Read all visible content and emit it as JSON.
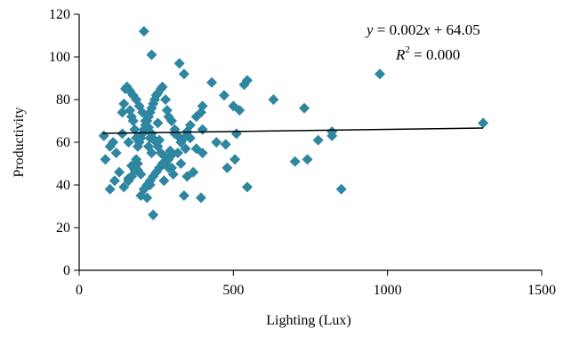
{
  "chart_data": {
    "type": "scatter",
    "title": "",
    "xlabel": "Lighting (Lux)",
    "ylabel": "Productivity",
    "xlim": [
      0,
      1500
    ],
    "ylim": [
      0,
      120
    ],
    "xticks": [
      0,
      500,
      1000,
      1500
    ],
    "yticks": [
      0,
      20,
      40,
      60,
      80,
      100,
      120
    ],
    "grid": false,
    "legend": "none",
    "marker": "diamond",
    "marker_color": "#2E86A0",
    "trendline": {
      "slope": 0.002,
      "intercept": 64.05,
      "x_range": [
        75,
        1310
      ],
      "color": "#000000"
    },
    "annotations": {
      "equation_y": "y",
      "equation_rest": " = 0.002",
      "equation_x": "x",
      "equation_tail": " + 64.05",
      "r2_symbol": "R",
      "r2_exp": "2",
      "r2_value": " = 0.000"
    },
    "series": [
      {
        "x": [
          210,
          235,
          325,
          340,
          545,
          535,
          430,
          470,
          520,
          630,
          730,
          975,
          1310,
          820,
          820,
          775,
          740,
          700,
          850,
          545,
          480,
          505,
          510,
          475,
          500,
          445,
          400,
          395,
          380,
          360,
          350,
          340,
          330,
          320,
          310,
          300,
          290,
          285,
          280,
          270,
          265,
          255,
          250,
          245,
          240,
          235,
          230,
          225,
          220,
          215,
          210,
          205,
          200,
          195,
          190,
          185,
          180,
          175,
          170,
          165,
          160,
          150,
          145,
          140,
          120,
          110,
          100,
          85,
          80,
          400,
          345,
          330,
          310,
          295,
          280,
          265,
          255,
          245,
          235,
          225,
          215,
          205,
          195,
          185,
          175,
          165,
          155,
          140,
          360,
          380,
          320,
          300,
          290,
          270,
          260,
          250,
          240,
          230,
          220,
          210,
          200,
          190,
          180,
          170,
          160,
          340,
          305,
          275,
          230,
          210,
          200,
          190,
          180,
          170,
          160,
          145,
          130,
          115,
          100,
          395,
          370,
          350,
          300,
          250,
          235,
          225,
          185,
          170,
          330,
          290,
          240,
          220,
          260,
          400,
          230,
          255
        ],
        "y": [
          112,
          101,
          97,
          92,
          89,
          87,
          88,
          82,
          75,
          80,
          76,
          92,
          69,
          65,
          63,
          61,
          52,
          51,
          38,
          39,
          48,
          52,
          64,
          59,
          77,
          60,
          77,
          74,
          72,
          68,
          65,
          62,
          60,
          63,
          66,
          70,
          72,
          75,
          80,
          86,
          85,
          83,
          82,
          80,
          78,
          76,
          74,
          72,
          70,
          68,
          66,
          64,
          62,
          60,
          58,
          62,
          66,
          70,
          72,
          75,
          60,
          85,
          78,
          74,
          55,
          60,
          58,
          52,
          63,
          55,
          57,
          60,
          64,
          56,
          53,
          55,
          58,
          61,
          64,
          67,
          70,
          74,
          77,
          80,
          82,
          84,
          86,
          64,
          62,
          57,
          55,
          54,
          52,
          50,
          48,
          46,
          44,
          42,
          40,
          38,
          45,
          50,
          47,
          44,
          43,
          35,
          45,
          42,
          40,
          38,
          35,
          47,
          49,
          44,
          42,
          39,
          46,
          42,
          38,
          34,
          46,
          44,
          48,
          60,
          55,
          58,
          52,
          49,
          50,
          48,
          26,
          34,
          61,
          66,
          62,
          69
        ]
      }
    ]
  }
}
